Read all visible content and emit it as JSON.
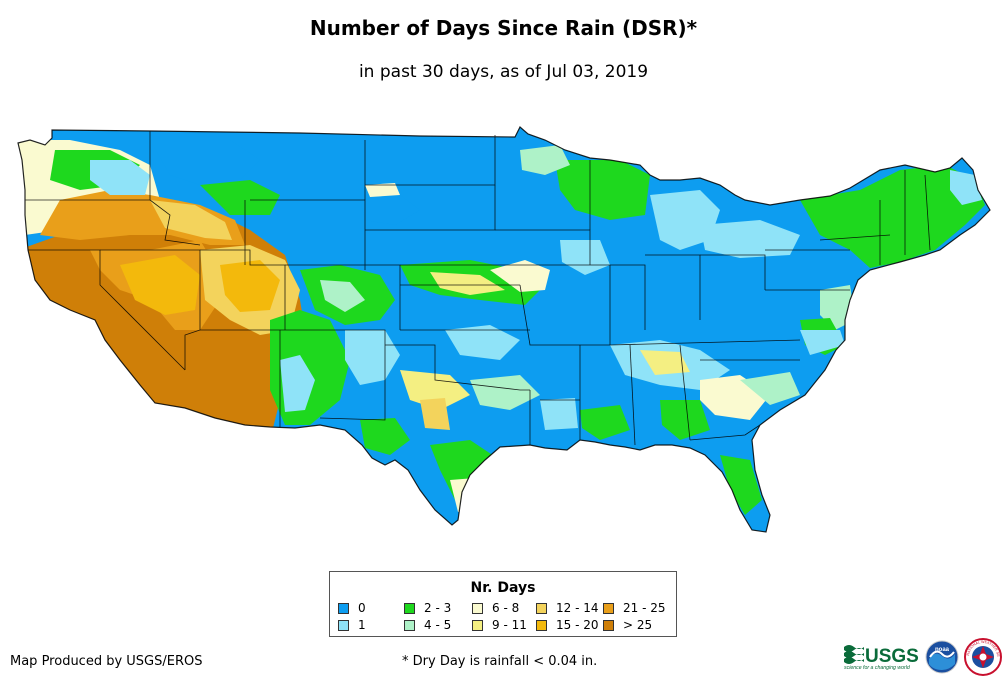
{
  "title": "Number of Days Since Rain (DSR)*",
  "subtitle": "in past 30 days, as of Jul 03, 2019",
  "legend": {
    "title": "Nr. Days",
    "items": [
      {
        "label": "0",
        "color": "#0d9df0"
      },
      {
        "label": "1",
        "color": "#8fe3f8"
      },
      {
        "label": "2 - 3",
        "color": "#1ed81e"
      },
      {
        "label": "4 - 5",
        "color": "#aef2c8"
      },
      {
        "label": "6 - 8",
        "color": "#fafad0"
      },
      {
        "label": "9 - 11",
        "color": "#f4ef82"
      },
      {
        "label": "12 - 14",
        "color": "#f3d35c"
      },
      {
        "label": "15 - 20",
        "color": "#f3b90c"
      },
      {
        "label": "21 - 25",
        "color": "#e99f1a"
      },
      {
        "label": "> 25",
        "color": "#cf7f08"
      }
    ]
  },
  "footer": {
    "credit": "Map Produced by USGS/EROS",
    "note": "* Dry Day is rainfall < 0.04 in."
  },
  "logos": {
    "usgs": "USGS",
    "usgs_tagline": "science for a changing world",
    "noaa": "noaa",
    "nws": "NATIONAL WEATHER SERVICE"
  }
}
